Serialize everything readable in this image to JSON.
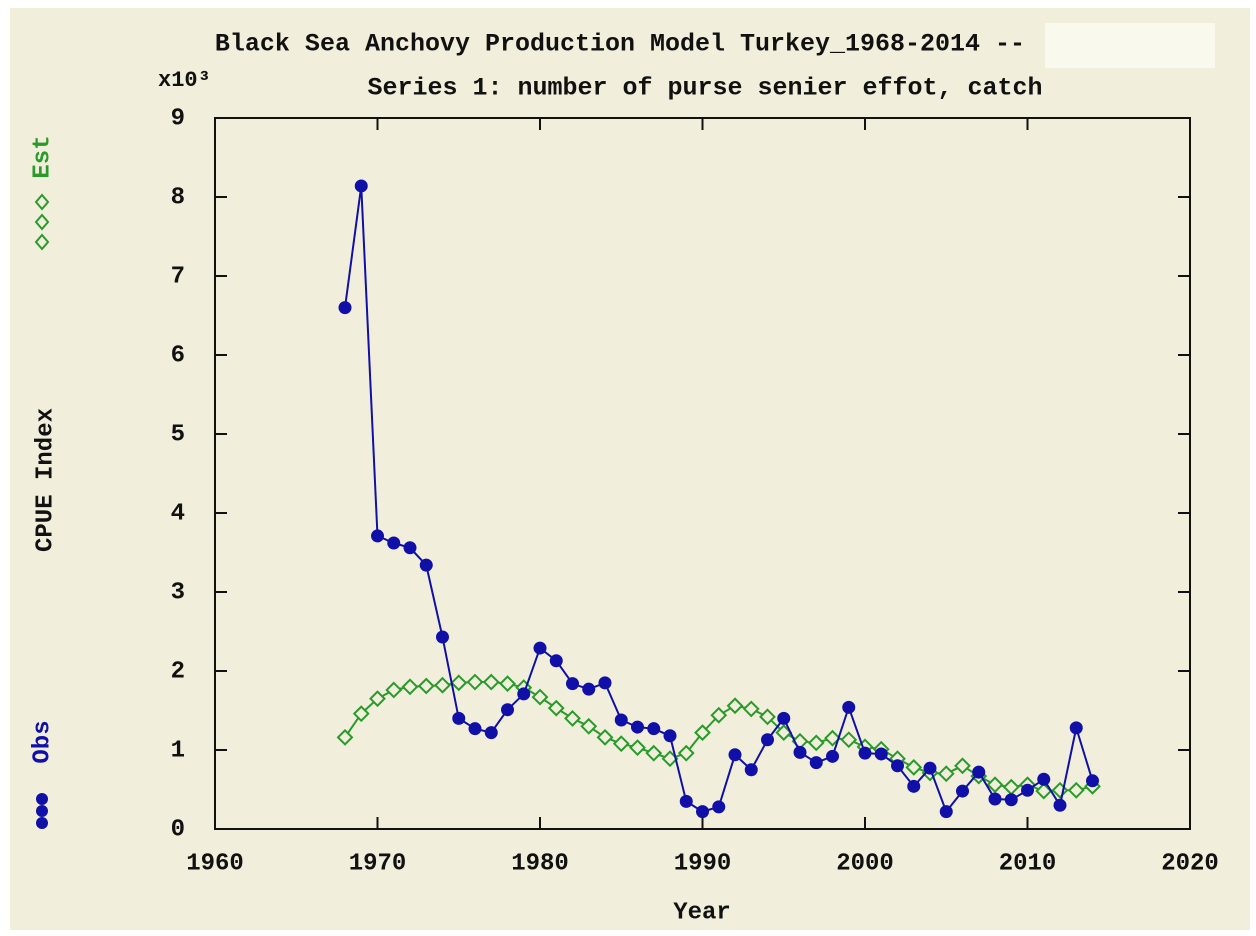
{
  "chart_data": {
    "type": "line",
    "title": "Black Sea Anchovy Production Model Turkey_1968-2014 --",
    "subtitle": "Series 1: number of purse senier effot, catch",
    "xlabel": "Year",
    "ylabel": "CPUE Index",
    "y_scale_label": "x10³",
    "x": [
      1968,
      1969,
      1970,
      1971,
      1972,
      1973,
      1974,
      1975,
      1976,
      1977,
      1978,
      1979,
      1980,
      1981,
      1982,
      1983,
      1984,
      1985,
      1986,
      1987,
      1988,
      1989,
      1990,
      1991,
      1992,
      1993,
      1994,
      1995,
      1996,
      1997,
      1998,
      1999,
      2000,
      2001,
      2002,
      2003,
      2004,
      2005,
      2006,
      2007,
      2008,
      2009,
      2010,
      2011,
      2012,
      2013,
      2014
    ],
    "series": [
      {
        "name": "Obs",
        "color": "#1010a8",
        "marker": "circle",
        "values": [
          6.6,
          8.14,
          3.71,
          3.62,
          3.56,
          3.34,
          2.43,
          1.4,
          1.27,
          1.22,
          1.51,
          1.71,
          2.29,
          2.13,
          1.84,
          1.77,
          1.85,
          1.38,
          1.29,
          1.27,
          1.18,
          0.35,
          0.22,
          0.28,
          0.94,
          0.75,
          1.13,
          1.4,
          0.97,
          0.84,
          0.92,
          1.54,
          0.96,
          0.95,
          0.8,
          0.54,
          0.77,
          0.22,
          0.48,
          0.72,
          0.38,
          0.37,
          0.49,
          0.63,
          0.3,
          1.28,
          0.61
        ]
      },
      {
        "name": "Est",
        "color": "#2a9a2a",
        "marker": "diamond",
        "values": [
          1.16,
          1.46,
          1.65,
          1.76,
          1.8,
          1.81,
          1.82,
          1.85,
          1.86,
          1.86,
          1.84,
          1.79,
          1.67,
          1.53,
          1.4,
          1.3,
          1.16,
          1.08,
          1.03,
          0.96,
          0.89,
          0.96,
          1.22,
          1.44,
          1.56,
          1.52,
          1.42,
          1.22,
          1.11,
          1.09,
          1.15,
          1.13,
          1.04,
          1.01,
          0.89,
          0.78,
          0.71,
          0.7,
          0.8,
          0.67,
          0.56,
          0.53,
          0.56,
          0.48,
          0.49,
          0.49,
          0.54
        ]
      }
    ],
    "xlim": [
      1960,
      2020
    ],
    "xticks": [
      1960,
      1970,
      1980,
      1990,
      2000,
      2010,
      2020
    ],
    "ylim": [
      0,
      9
    ],
    "yticks": [
      0,
      1,
      2,
      3,
      4,
      5,
      6,
      7,
      8,
      9
    ]
  }
}
